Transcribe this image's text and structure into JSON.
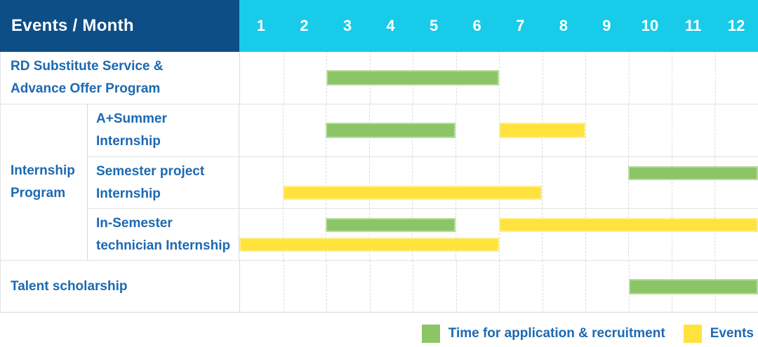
{
  "chart_data": {
    "type": "gantt",
    "title": "Events / Month",
    "months": [
      "1",
      "2",
      "3",
      "4",
      "5",
      "6",
      "7",
      "8",
      "9",
      "10",
      "11",
      "12"
    ],
    "month_axis_range": [
      1,
      12
    ],
    "grid": true,
    "colors": {
      "header_bg": "#0d4e87",
      "month_header_bg": "#17cbe9",
      "label_text": "#1c69b2",
      "green": "#8bc565",
      "yellow": "#ffe33c"
    },
    "rows": [
      {
        "kind": "single",
        "id": "rd-substitute-service",
        "label_lines": [
          "RD Substitute Service &",
          "Advance Offer Program"
        ],
        "bars": [
          {
            "type": "green",
            "from": 3,
            "to": 6,
            "band": "center"
          }
        ]
      },
      {
        "kind": "group",
        "id": "internship-program",
        "label_lines": [
          "Internship",
          "Program"
        ],
        "subrows": [
          {
            "id": "a-plus-summer-internship",
            "label_lines": [
              "A+Summer",
              "Internship"
            ],
            "bars": [
              {
                "type": "green",
                "from": 3,
                "to": 5,
                "band": "center"
              },
              {
                "type": "yellow",
                "from": 7,
                "to": 8,
                "band": "center"
              }
            ]
          },
          {
            "id": "semester-project-internship",
            "label_lines": [
              "Semester project",
              "Internship"
            ],
            "bars": [
              {
                "type": "green",
                "from": 10,
                "to": 12,
                "band": "top"
              },
              {
                "type": "yellow",
                "from": 2,
                "to": 7,
                "band": "bottom"
              }
            ]
          },
          {
            "id": "in-semester-technician-internship",
            "label_lines": [
              "In-Semester",
              "technician Internship"
            ],
            "bars": [
              {
                "type": "green",
                "from": 3,
                "to": 5,
                "band": "top"
              },
              {
                "type": "yellow",
                "from": 7,
                "to": 12,
                "band": "top"
              },
              {
                "type": "yellow",
                "from": 1,
                "to": 6,
                "band": "bottom"
              }
            ]
          }
        ]
      },
      {
        "kind": "single",
        "id": "talent-scholarship",
        "label_lines": [
          "Talent scholarship"
        ],
        "bars": [
          {
            "type": "green",
            "from": 10,
            "to": 12,
            "band": "center"
          }
        ]
      }
    ],
    "legend": {
      "position": "bottom-right",
      "items": [
        {
          "type": "green",
          "label": "Time for application & recruitment"
        },
        {
          "type": "yellow",
          "label": "Events"
        }
      ]
    }
  }
}
